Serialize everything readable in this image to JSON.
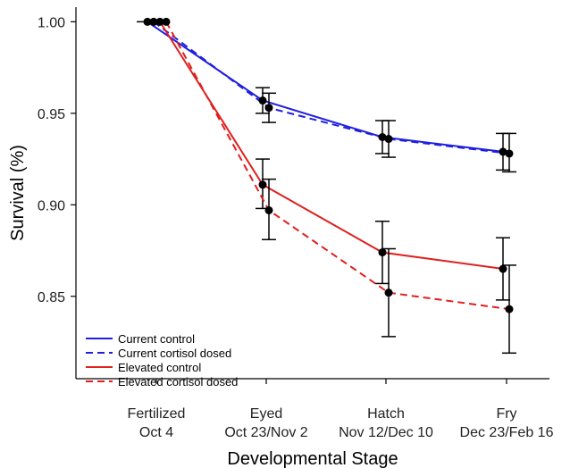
{
  "chart_data": {
    "type": "line",
    "xlabel": "Developmental Stage",
    "ylabel": "Survival (%)",
    "ylim": [
      0.805,
      1.008
    ],
    "yticks": [
      "0.85",
      "0.90",
      "0.95",
      "1.00"
    ],
    "categories": [
      {
        "line1": "Fertilized",
        "line2": "Oct 4"
      },
      {
        "line1": "Eyed",
        "line2": "Oct 23/Nov 2"
      },
      {
        "line1": "Hatch",
        "line2": "Nov 12/Dec 10"
      },
      {
        "line1": "Fry",
        "line2": "Dec 23/Feb 16"
      }
    ],
    "legend_position": "bottom-left",
    "series": [
      {
        "name": "Current control",
        "color": "#1f1fe0",
        "dash": "solid",
        "values": [
          1.0,
          0.957,
          0.937,
          0.929
        ],
        "err_low": [
          1.0,
          0.95,
          0.928,
          0.919
        ],
        "err_high": [
          1.0,
          0.964,
          0.946,
          0.939
        ]
      },
      {
        "name": "Current cortisol dosed",
        "color": "#1f1fe0",
        "dash": "dashed",
        "values": [
          1.0,
          0.953,
          0.936,
          0.928
        ],
        "err_low": [
          1.0,
          0.945,
          0.926,
          0.918
        ],
        "err_high": [
          1.0,
          0.961,
          0.946,
          0.939
        ]
      },
      {
        "name": "Elevated control",
        "color": "#e01f1f",
        "dash": "solid",
        "values": [
          1.0,
          0.911,
          0.874,
          0.865
        ],
        "err_low": [
          1.0,
          0.898,
          0.857,
          0.848
        ],
        "err_high": [
          1.0,
          0.925,
          0.891,
          0.882
        ]
      },
      {
        "name": "Elevated cortisol dosed",
        "color": "#e01f1f",
        "dash": "dashed",
        "values": [
          1.0,
          0.897,
          0.852,
          0.843
        ],
        "err_low": [
          1.0,
          0.881,
          0.828,
          0.819
        ],
        "err_high": [
          1.0,
          0.914,
          0.876,
          0.867
        ]
      }
    ]
  }
}
